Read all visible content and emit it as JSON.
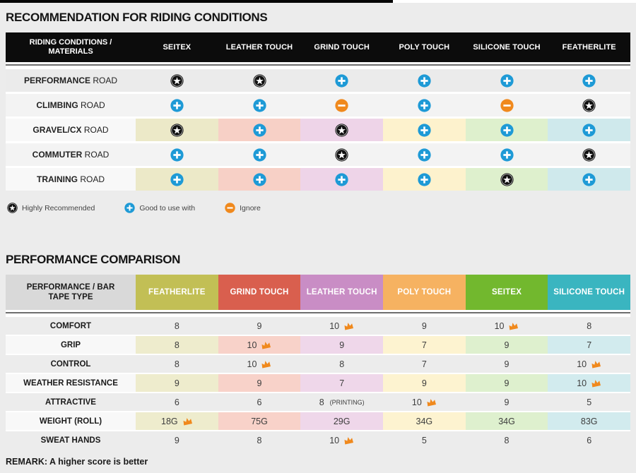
{
  "section1": {
    "title": "RECOMMENDATION FOR RIDING CONDITIONS",
    "table": {
      "corner_label": "RIDING CONDITIONS / MATERIALS",
      "columns": [
        "SEITEX",
        "LEATHER TOUCH",
        "GRIND TOUCH",
        "POLY TOUCH",
        "SILICONE TOUCH",
        "FEATHERLITE"
      ],
      "column_tints": [
        "#ece9c8",
        "#f7d0c6",
        "#eed4e8",
        "#fdf2cd",
        "#def0cd",
        "#cfe9ec"
      ],
      "rows": [
        {
          "material": "PERFORMANCE",
          "type": "ROAD",
          "colored": false,
          "cells": [
            "star",
            "star",
            "plus",
            "plus",
            "plus",
            "plus"
          ]
        },
        {
          "material": "CLIMBING",
          "type": "ROAD",
          "colored": false,
          "cells": [
            "plus",
            "plus",
            "minus",
            "plus",
            "minus",
            "star"
          ]
        },
        {
          "material": "GRAVEL/CX",
          "type": "ROAD",
          "colored": true,
          "cells": [
            "star",
            "plus",
            "star",
            "plus",
            "plus",
            "plus"
          ]
        },
        {
          "material": "COMMUTER",
          "type": "ROAD",
          "colored": false,
          "cells": [
            "plus",
            "plus",
            "star",
            "plus",
            "plus",
            "star"
          ]
        },
        {
          "material": "TRAINING",
          "type": "ROAD",
          "colored": true,
          "cells": [
            "plus",
            "plus",
            "plus",
            "plus",
            "star",
            "plus"
          ]
        }
      ]
    },
    "legend": [
      {
        "icon": "star",
        "label": "Highly Recommended"
      },
      {
        "icon": "plus",
        "label": "Good to use with"
      },
      {
        "icon": "minus",
        "label": "Ignore"
      }
    ]
  },
  "section2": {
    "title": "PERFORMANCE COMPARISON",
    "table": {
      "corner_label": "PERFORMANCE / BAR TAPE TYPE",
      "columns": [
        {
          "label": "FEATHERLITE",
          "color": "#c2bf55"
        },
        {
          "label": "GRIND TOUCH",
          "color": "#d95f4e"
        },
        {
          "label": "LEATHER TOUCH",
          "color": "#c98dc5"
        },
        {
          "label": "POLY TOUCH",
          "color": "#f6b261"
        },
        {
          "label": "SEITEX",
          "color": "#72b82e"
        },
        {
          "label": "SILICONE TOUCH",
          "color": "#3ab5c0"
        }
      ],
      "column_tints": [
        "#eeeccd",
        "#f8d2c9",
        "#efd7ea",
        "#fdf3d0",
        "#def0ce",
        "#d2ebee"
      ],
      "rows": [
        {
          "label": "COMFORT",
          "colored": false,
          "cells": [
            {
              "v": "8"
            },
            {
              "v": "9"
            },
            {
              "v": "10",
              "crown": true
            },
            {
              "v": "9"
            },
            {
              "v": "10",
              "crown": true
            },
            {
              "v": "8"
            }
          ]
        },
        {
          "label": "GRIP",
          "colored": true,
          "cells": [
            {
              "v": "8"
            },
            {
              "v": "10",
              "crown": true
            },
            {
              "v": "9"
            },
            {
              "v": "7"
            },
            {
              "v": "9"
            },
            {
              "v": "7"
            }
          ]
        },
        {
          "label": "CONTROL",
          "colored": false,
          "cells": [
            {
              "v": "8"
            },
            {
              "v": "10",
              "crown": true
            },
            {
              "v": "8"
            },
            {
              "v": "7"
            },
            {
              "v": "9"
            },
            {
              "v": "10",
              "crown": true
            }
          ]
        },
        {
          "label": "WEATHER RESISTANCE",
          "colored": true,
          "cells": [
            {
              "v": "9"
            },
            {
              "v": "9"
            },
            {
              "v": "7"
            },
            {
              "v": "9"
            },
            {
              "v": "9"
            },
            {
              "v": "10",
              "crown": true
            }
          ]
        },
        {
          "label": "ATTRACTIVE",
          "colored": false,
          "cells": [
            {
              "v": "6"
            },
            {
              "v": "6"
            },
            {
              "v": "8",
              "suffix": "(PRINTING)"
            },
            {
              "v": "10",
              "crown": true
            },
            {
              "v": "9"
            },
            {
              "v": "5"
            }
          ]
        },
        {
          "label": "WEIGHT (ROLL)",
          "colored": true,
          "cells": [
            {
              "v": "18G",
              "crown": true
            },
            {
              "v": "75G"
            },
            {
              "v": "29G"
            },
            {
              "v": "34G"
            },
            {
              "v": "34G"
            },
            {
              "v": "83G"
            }
          ]
        },
        {
          "label": "SWEAT HANDS",
          "colored": false,
          "cells": [
            {
              "v": "9"
            },
            {
              "v": "8"
            },
            {
              "v": "10",
              "crown": true
            },
            {
              "v": "5"
            },
            {
              "v": "8"
            },
            {
              "v": "6"
            }
          ]
        }
      ]
    },
    "remark": "REMARK: A higher score is better"
  },
  "icons": {
    "star": {
      "name": "highly-recommended-star-icon",
      "bg": "#111111",
      "fg": "#ffffff"
    },
    "plus": {
      "name": "good-to-use-plus-icon",
      "bg": "#1e9ad6",
      "fg": "#ffffff"
    },
    "minus": {
      "name": "ignore-minus-icon",
      "bg": "#f0891d",
      "fg": "#ffffff"
    },
    "crown": {
      "name": "best-score-crown-icon",
      "color": "#f0891d"
    }
  }
}
